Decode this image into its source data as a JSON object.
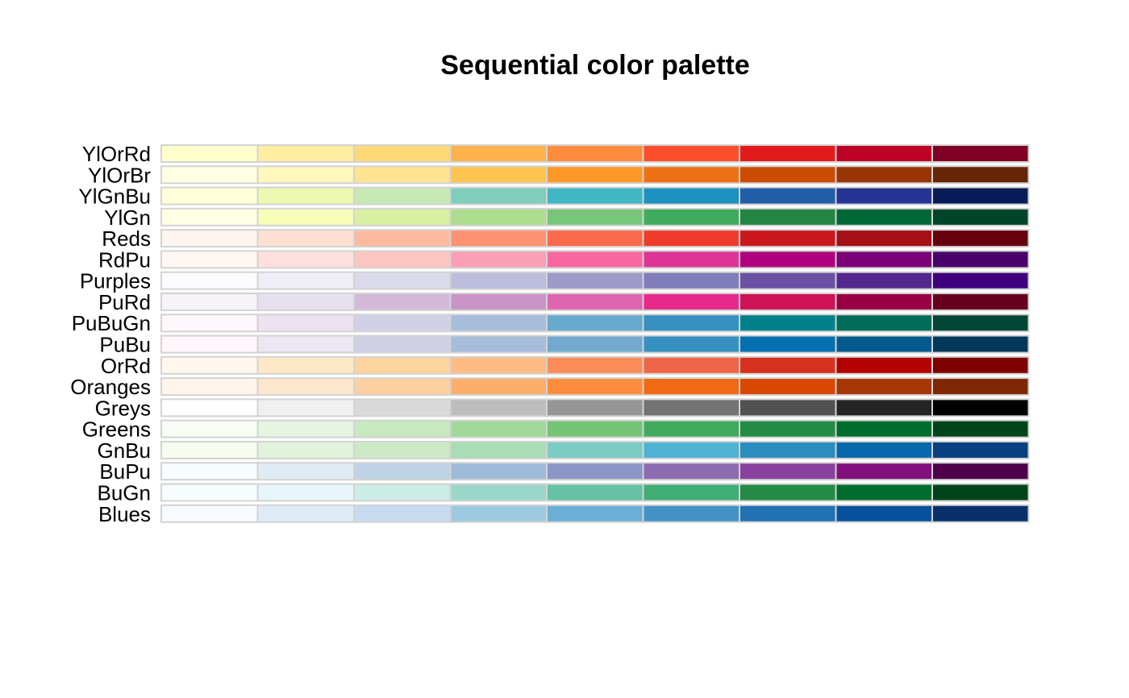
{
  "chart_data": {
    "type": "heatmap",
    "title": "Sequential color palette",
    "xlabel": "",
    "ylabel": "",
    "grid": false,
    "palettes": [
      {
        "name": "YlOrRd",
        "colors": [
          "#FFFFCC",
          "#FFEDA0",
          "#FED976",
          "#FEB24C",
          "#FD8D3C",
          "#FC4E2A",
          "#E31A1C",
          "#BD0026",
          "#800026"
        ]
      },
      {
        "name": "YlOrBr",
        "colors": [
          "#FFFFE5",
          "#FFF7BC",
          "#FEE391",
          "#FEC44F",
          "#FE9929",
          "#EC7014",
          "#CC4C02",
          "#993404",
          "#662506"
        ]
      },
      {
        "name": "YlGnBu",
        "colors": [
          "#FFFFD9",
          "#EDF8B1",
          "#C7E9B4",
          "#7FCDBB",
          "#41B6C4",
          "#1D91C0",
          "#225EA8",
          "#253494",
          "#081D58"
        ]
      },
      {
        "name": "YlGn",
        "colors": [
          "#FFFFE5",
          "#F7FCB9",
          "#D9F0A3",
          "#ADDD8E",
          "#78C679",
          "#41AB5D",
          "#238443",
          "#006837",
          "#004529"
        ]
      },
      {
        "name": "Reds",
        "colors": [
          "#FFF5F0",
          "#FEE0D2",
          "#FCBBA1",
          "#FC9272",
          "#FB6A4A",
          "#EF3B2C",
          "#CB181D",
          "#A50F15",
          "#67000D"
        ]
      },
      {
        "name": "RdPu",
        "colors": [
          "#FFF7F3",
          "#FDE0DD",
          "#FCC5C0",
          "#FA9FB5",
          "#F768A1",
          "#DD3497",
          "#AE017E",
          "#7A0177",
          "#49006A"
        ]
      },
      {
        "name": "Purples",
        "colors": [
          "#FCFBFD",
          "#EFEDF5",
          "#DADAEB",
          "#BCBDDC",
          "#9E9AC8",
          "#807DBA",
          "#6A51A3",
          "#54278F",
          "#3F007D"
        ]
      },
      {
        "name": "PuRd",
        "colors": [
          "#F7F4F9",
          "#E7E1EF",
          "#D4B9DA",
          "#C994C7",
          "#DF65B0",
          "#E7298A",
          "#CE1256",
          "#980043",
          "#67001F"
        ]
      },
      {
        "name": "PuBuGn",
        "colors": [
          "#FFF7FB",
          "#ECE2F0",
          "#D0D1E6",
          "#A6BDDB",
          "#67A9CF",
          "#3690C0",
          "#02818A",
          "#016C59",
          "#014636"
        ]
      },
      {
        "name": "PuBu",
        "colors": [
          "#FFF7FB",
          "#ECE7F2",
          "#D0D1E6",
          "#A6BDDB",
          "#74A9CF",
          "#3690C0",
          "#0570B0",
          "#045A8D",
          "#023858"
        ]
      },
      {
        "name": "OrRd",
        "colors": [
          "#FFF7EC",
          "#FEE8C8",
          "#FDD49E",
          "#FDBB84",
          "#FC8D59",
          "#EF6548",
          "#D7301F",
          "#B30000",
          "#7F0000"
        ]
      },
      {
        "name": "Oranges",
        "colors": [
          "#FFF5EB",
          "#FEE6CE",
          "#FDD0A2",
          "#FDAE6B",
          "#FD8D3C",
          "#F16913",
          "#D94801",
          "#A63603",
          "#7F2704"
        ]
      },
      {
        "name": "Greys",
        "colors": [
          "#FFFFFF",
          "#F0F0F0",
          "#D9D9D9",
          "#BDBDBD",
          "#969696",
          "#737373",
          "#525252",
          "#252525",
          "#000000"
        ]
      },
      {
        "name": "Greens",
        "colors": [
          "#F7FCF5",
          "#E5F5E0",
          "#C7E9C0",
          "#A1D99B",
          "#74C476",
          "#41AB5D",
          "#238B45",
          "#006D2C",
          "#00441B"
        ]
      },
      {
        "name": "GnBu",
        "colors": [
          "#F7FCF0",
          "#E0F3DB",
          "#CCEBC5",
          "#A8DDB5",
          "#7BCCC4",
          "#4EB3D3",
          "#2B8CBE",
          "#0868AC",
          "#084081"
        ]
      },
      {
        "name": "BuPu",
        "colors": [
          "#F7FCFD",
          "#E0ECF4",
          "#BFD3E6",
          "#9EBCDA",
          "#8C96C6",
          "#8C6BB1",
          "#88419D",
          "#810F7C",
          "#4D004B"
        ]
      },
      {
        "name": "BuGn",
        "colors": [
          "#F7FCFD",
          "#E5F5F9",
          "#CCECE6",
          "#99D8C9",
          "#66C2A4",
          "#41AE76",
          "#238B45",
          "#006D2C",
          "#00441B"
        ]
      },
      {
        "name": "Blues",
        "colors": [
          "#F7FBFF",
          "#DEEBF7",
          "#C6DBEF",
          "#9ECAE1",
          "#6BAED6",
          "#4292C6",
          "#2171B5",
          "#08519C",
          "#08306B"
        ]
      }
    ]
  }
}
